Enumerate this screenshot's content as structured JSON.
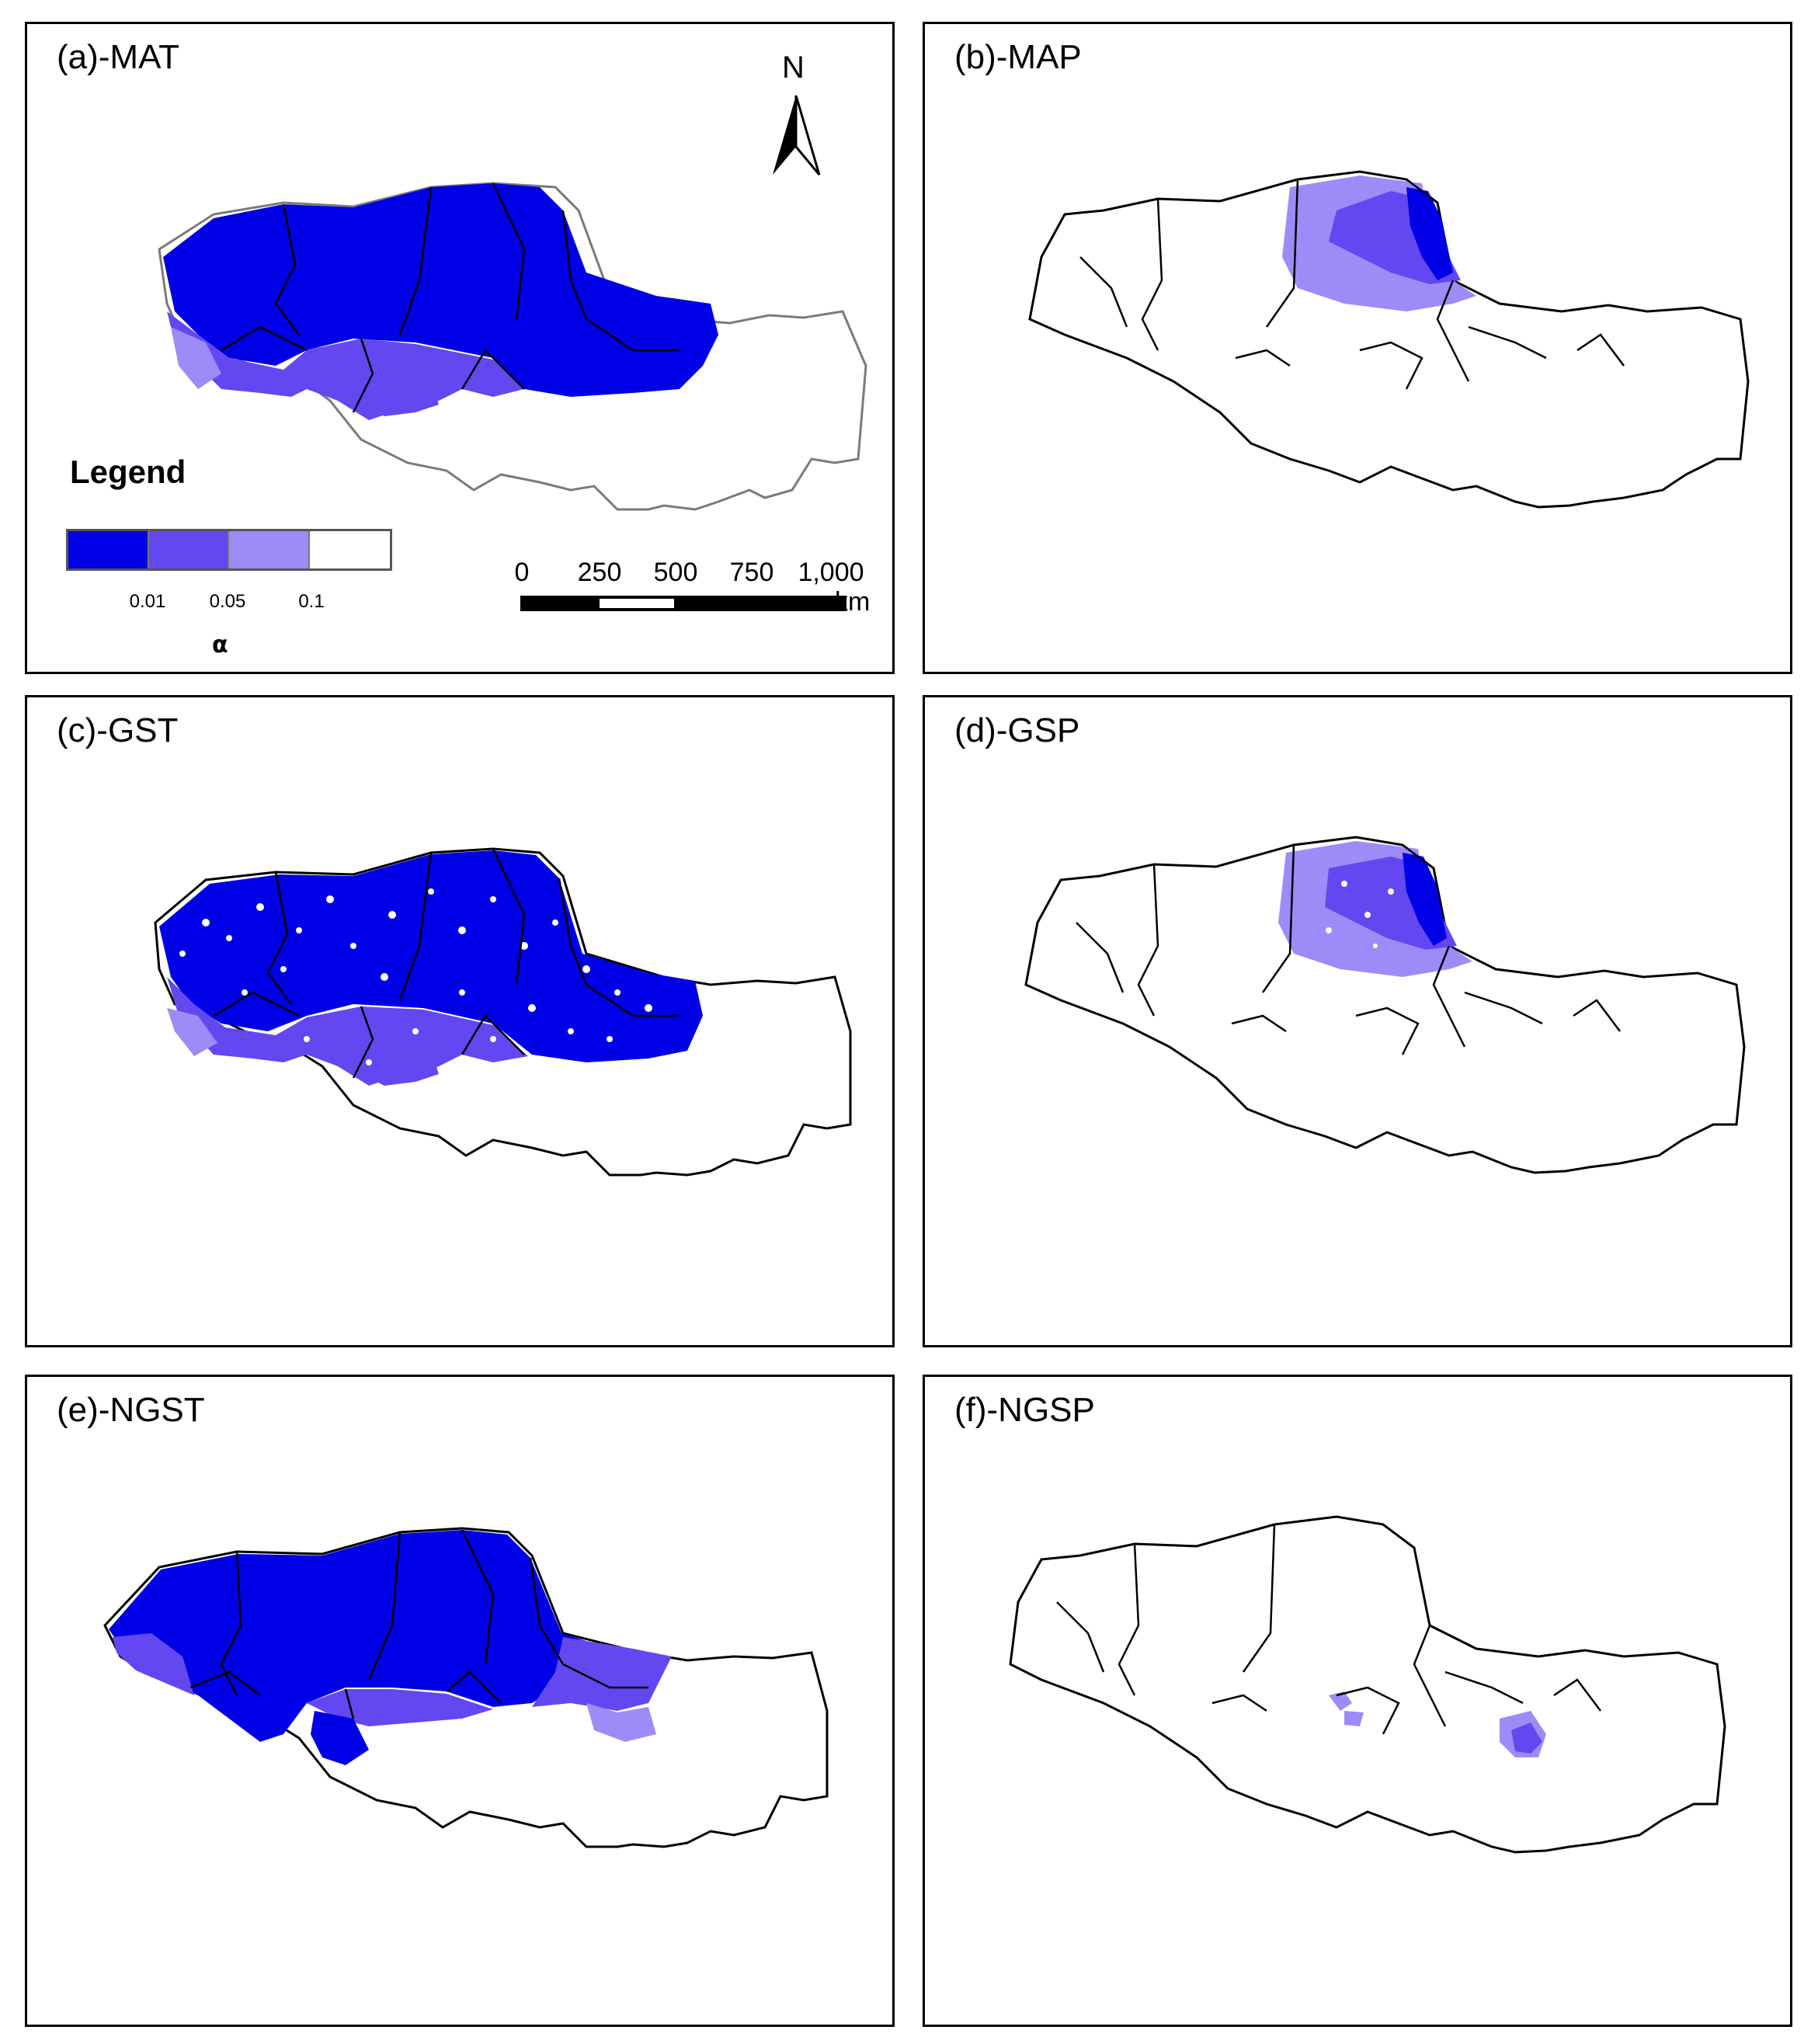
{
  "colors": {
    "class_001": "#0000e6",
    "class_005": "#6347f0",
    "class_01": "#9c8cf7",
    "class_ns": "#ffffff",
    "boundary": "#000000",
    "outline_grey": "#7a7a7a"
  },
  "panels": [
    {
      "label": "(a)-MAT"
    },
    {
      "label": "(b)-MAP"
    },
    {
      "label": "(c)-GST"
    },
    {
      "label": "(d)-GSP"
    },
    {
      "label": "(e)-NGST"
    },
    {
      "label": "(f)-NGSP"
    }
  ],
  "legend": {
    "title": "Legend",
    "ticks": [
      "0.01",
      "0.05",
      "0.1"
    ],
    "symbol": "α"
  },
  "scale_bar": {
    "labels": [
      "0",
      "250",
      "500",
      "750",
      "1,000"
    ],
    "unit": "km"
  },
  "north_arrow": {
    "letter": "N",
    "icon": "north-arrow-icon"
  }
}
